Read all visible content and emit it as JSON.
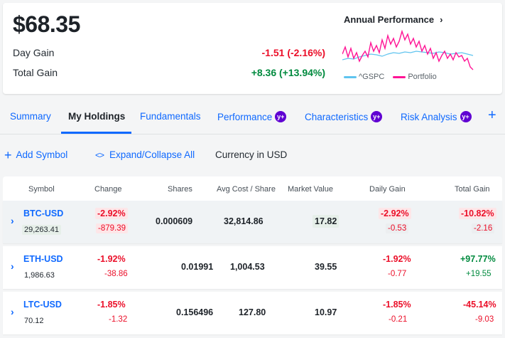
{
  "summary": {
    "total_value": "$68.35",
    "day_gain_label": "Day Gain",
    "day_gain_value": "-1.51 (-2.16%)",
    "total_gain_label": "Total Gain",
    "total_gain_value": "+8.36 (+13.94%)"
  },
  "annual_performance": {
    "title": "Annual Performance",
    "chevron": "›",
    "legend": [
      {
        "name": "^GSPC",
        "color": "#5fc4ef"
      },
      {
        "name": "Portfolio",
        "color": "#ff1495"
      }
    ]
  },
  "tabs": [
    {
      "label": "Summary",
      "active": false,
      "plus": false
    },
    {
      "label": "My Holdings",
      "active": true,
      "plus": false
    },
    {
      "label": "Fundamentals",
      "active": false,
      "plus": false
    },
    {
      "label": "Performance",
      "active": false,
      "plus": true
    },
    {
      "label": "Characteristics",
      "active": false,
      "plus": true
    },
    {
      "label": "Risk Analysis",
      "active": false,
      "plus": true
    }
  ],
  "plus_badge": "y+",
  "add_tab_icon": "+",
  "toolbar": {
    "add_symbol": "Add Symbol",
    "expand_collapse": "Expand/Collapse All",
    "currency": "Currency in USD"
  },
  "table": {
    "headers": [
      "Symbol",
      "Change",
      "Shares",
      "Avg Cost / Share",
      "Market Value",
      "Daily Gain",
      "Total Gain"
    ],
    "rows": [
      {
        "symbol": "BTC-USD",
        "price": "29,263.41",
        "change_pct": "-2.92%",
        "change_abs": "-879.39",
        "shares": "0.000609",
        "avg_cost": "32,814.86",
        "market_value": "17.82",
        "daily_pct": "-2.92%",
        "daily_abs": "-0.53",
        "total_pct": "-10.82%",
        "total_abs": "-2.16"
      },
      {
        "symbol": "ETH-USD",
        "price": "1,986.63",
        "change_pct": "-1.92%",
        "change_abs": "-38.86",
        "shares": "0.01991",
        "avg_cost": "1,004.53",
        "market_value": "39.55",
        "daily_pct": "-1.92%",
        "daily_abs": "-0.77",
        "total_pct": "+97.77%",
        "total_abs": "+19.55"
      },
      {
        "symbol": "LTC-USD",
        "price": "70.12",
        "change_pct": "-1.85%",
        "change_abs": "-1.32",
        "shares": "0.156496",
        "avg_cost": "127.80",
        "market_value": "10.97",
        "daily_pct": "-1.85%",
        "daily_abs": "-0.21",
        "total_pct": "-45.14%",
        "total_abs": "-9.03"
      }
    ]
  }
}
